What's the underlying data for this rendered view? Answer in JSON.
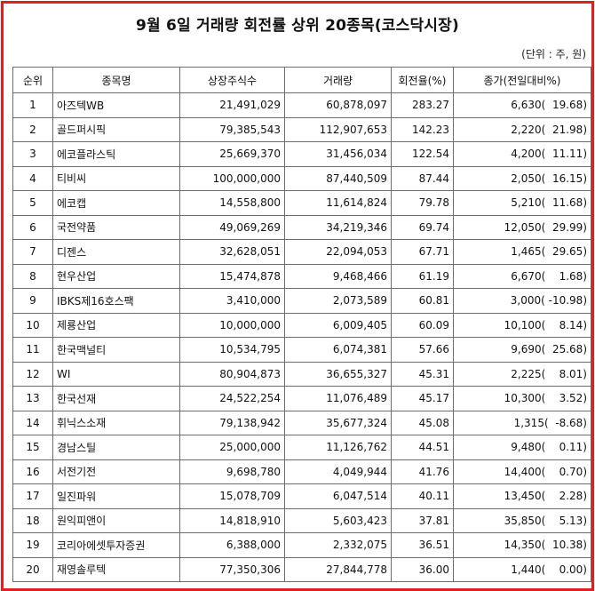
{
  "title": "9월 6일 거래량 회전률 상위 20종목(코스닥시장)",
  "unit": "(단위 : 주, 원)",
  "columns": [
    "순위",
    "종목명",
    "상장주식수",
    "거래량",
    "회전율(%)",
    "종가(전일대비%)"
  ],
  "rows": [
    {
      "rank": "1",
      "name": "아즈텍WB",
      "shares": "21,491,029",
      "volume": "60,878,097",
      "turnover": "283.27",
      "close": "6,630(  19.68)"
    },
    {
      "rank": "2",
      "name": "골드퍼시픽",
      "shares": "79,385,543",
      "volume": "112,907,653",
      "turnover": "142.23",
      "close": "2,220(  21.98)"
    },
    {
      "rank": "3",
      "name": "에코플라스틱",
      "shares": "25,669,370",
      "volume": "31,456,034",
      "turnover": "122.54",
      "close": "4,200(  11.11)"
    },
    {
      "rank": "4",
      "name": "티비씨",
      "shares": "100,000,000",
      "volume": "87,440,509",
      "turnover": "87.44",
      "close": "2,050(  16.15)"
    },
    {
      "rank": "5",
      "name": "에코캡",
      "shares": "14,558,800",
      "volume": "11,614,824",
      "turnover": "79.78",
      "close": "5,210(  11.68)"
    },
    {
      "rank": "6",
      "name": "국전약품",
      "shares": "49,069,269",
      "volume": "34,219,346",
      "turnover": "69.74",
      "close": "12,050(  29.99)"
    },
    {
      "rank": "7",
      "name": "디젠스",
      "shares": "32,628,051",
      "volume": "22,094,053",
      "turnover": "67.71",
      "close": "1,465(  29.65)"
    },
    {
      "rank": "8",
      "name": "현우산업",
      "shares": "15,474,878",
      "volume": "9,468,466",
      "turnover": "61.19",
      "close": "6,670(    1.68)"
    },
    {
      "rank": "9",
      "name": "IBKS제16호스팩",
      "shares": "3,410,000",
      "volume": "2,073,589",
      "turnover": "60.81",
      "close": "3,000( -10.98)"
    },
    {
      "rank": "10",
      "name": "제룡산업",
      "shares": "10,000,000",
      "volume": "6,009,405",
      "turnover": "60.09",
      "close": "10,100(    8.14)"
    },
    {
      "rank": "11",
      "name": "한국맥널티",
      "shares": "10,534,795",
      "volume": "6,074,381",
      "turnover": "57.66",
      "close": "9,690(  25.68)"
    },
    {
      "rank": "12",
      "name": "WI",
      "shares": "80,904,873",
      "volume": "36,655,327",
      "turnover": "45.31",
      "close": "2,225(    8.01)"
    },
    {
      "rank": "13",
      "name": "한국선재",
      "shares": "24,522,254",
      "volume": "11,076,489",
      "turnover": "45.17",
      "close": "10,300(    3.52)"
    },
    {
      "rank": "14",
      "name": "휘닉스소재",
      "shares": "79,138,942",
      "volume": "35,677,324",
      "turnover": "45.08",
      "close": "1,315(  -8.68)"
    },
    {
      "rank": "15",
      "name": "경남스틸",
      "shares": "25,000,000",
      "volume": "11,126,762",
      "turnover": "44.51",
      "close": "9,480(    0.11)"
    },
    {
      "rank": "16",
      "name": "서전기전",
      "shares": "9,698,780",
      "volume": "4,049,944",
      "turnover": "41.76",
      "close": "14,400(    0.70)"
    },
    {
      "rank": "17",
      "name": "일진파워",
      "shares": "15,078,709",
      "volume": "6,047,514",
      "turnover": "40.11",
      "close": "13,450(    2.28)"
    },
    {
      "rank": "18",
      "name": "원익피앤이",
      "shares": "14,818,910",
      "volume": "5,603,423",
      "turnover": "37.81",
      "close": "35,850(    5.13)"
    },
    {
      "rank": "19",
      "name": "코리아에셋투자증권",
      "shares": "6,388,000",
      "volume": "2,332,075",
      "turnover": "36.51",
      "close": "14,350(  10.38)"
    },
    {
      "rank": "20",
      "name": "재영솔루텍",
      "shares": "77,350,306",
      "volume": "27,844,778",
      "turnover": "36.00",
      "close": "1,440(    0.00)"
    }
  ]
}
